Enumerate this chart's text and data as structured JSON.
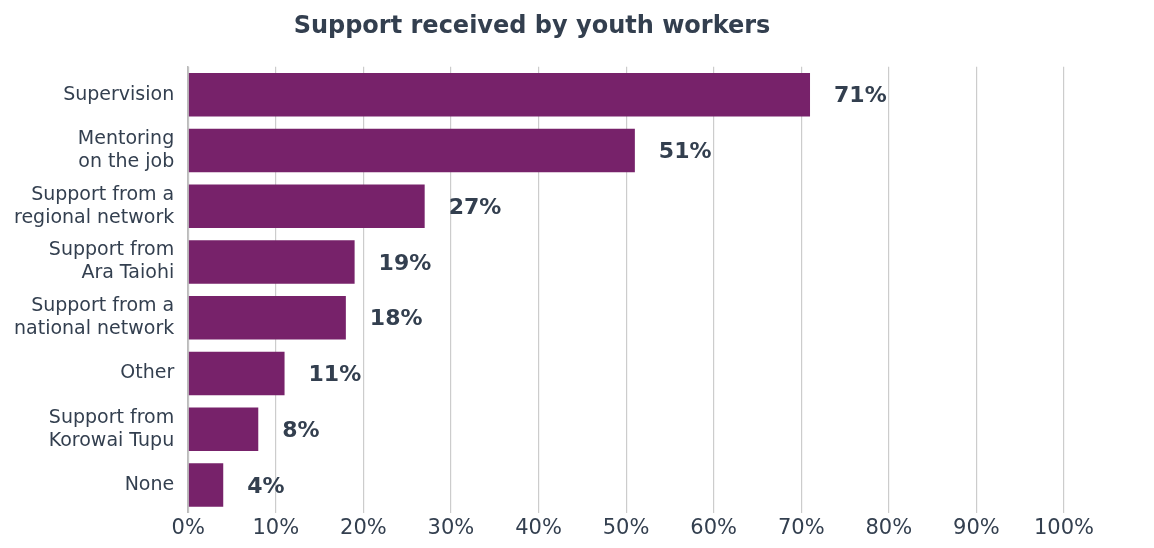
{
  "chart_data": {
    "type": "bar",
    "orientation": "horizontal",
    "title": "Support received by youth workers",
    "categories": [
      "Supervision",
      "Mentoring\non the job",
      "Support from a\nregional network",
      "Support from\nAra Taiohi",
      "Support from a\nnational network",
      "Other",
      "Support from\nKorowai Tupu",
      "None"
    ],
    "values": [
      71,
      51,
      27,
      19,
      18,
      11,
      8,
      4
    ],
    "value_labels": [
      "71%",
      "51%",
      "27%",
      "19%",
      "18%",
      "11%",
      "8%",
      "4%"
    ],
    "color": "#77226a",
    "xlim": [
      0,
      100
    ],
    "xticks": [
      {
        "value": 0,
        "label": "0%"
      },
      {
        "value": 10,
        "label": "10%"
      },
      {
        "value": 20,
        "label": "20%"
      },
      {
        "value": 30,
        "label": "30%"
      },
      {
        "value": 40,
        "label": "40%"
      },
      {
        "value": 50,
        "label": "50%"
      },
      {
        "value": 60,
        "label": "60%"
      },
      {
        "value": 70,
        "label": "70%"
      },
      {
        "value": 80,
        "label": "80%"
      },
      {
        "value": 90,
        "label": "90%"
      },
      {
        "value": 100,
        "label": "100%"
      }
    ],
    "grid": "x"
  }
}
